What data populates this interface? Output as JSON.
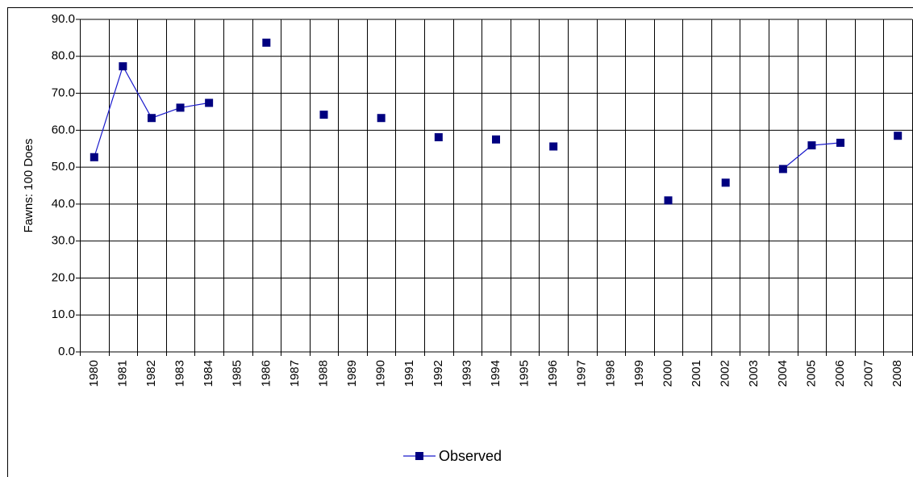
{
  "chart_data": {
    "type": "line",
    "y_label": "Fawns: 100 Does",
    "categories": [
      "1980",
      "1981",
      "1982",
      "1983",
      "1984",
      "1985",
      "1986",
      "1987",
      "1988",
      "1989",
      "1990",
      "1991",
      "1992",
      "1993",
      "1994",
      "1995",
      "1996",
      "1997",
      "1998",
      "1999",
      "2000",
      "2001",
      "2002",
      "2003",
      "2004",
      "2005",
      "2006",
      "2007",
      "2008"
    ],
    "series": [
      {
        "name": "Observed",
        "color": "#000080",
        "values": [
          52.7,
          77.3,
          63.3,
          66.1,
          67.4,
          null,
          83.7,
          null,
          64.2,
          null,
          63.3,
          null,
          58.1,
          null,
          57.5,
          null,
          55.6,
          null,
          null,
          null,
          41.0,
          null,
          45.8,
          null,
          49.5,
          55.9,
          56.6,
          null,
          58.5
        ]
      }
    ],
    "ylim": [
      0,
      90
    ],
    "yticks": [
      {
        "value": 0,
        "label": "0.0"
      },
      {
        "value": 10,
        "label": "10.0"
      },
      {
        "value": 20,
        "label": "20.0"
      },
      {
        "value": 30,
        "label": "30.0"
      },
      {
        "value": 40,
        "label": "40.0"
      },
      {
        "value": 50,
        "label": "50.0"
      },
      {
        "value": 60,
        "label": "60.0"
      },
      {
        "value": 70,
        "label": "70.0"
      },
      {
        "value": 80,
        "label": "80.0"
      },
      {
        "value": 90,
        "label": "90.0"
      }
    ],
    "grid": true,
    "legend": "bottom"
  }
}
